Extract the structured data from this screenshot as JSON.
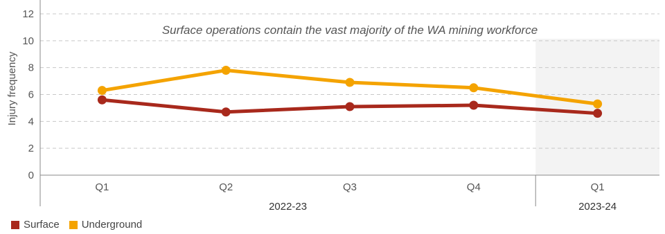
{
  "chart_data": {
    "type": "line",
    "title": "",
    "annotation": "Surface operations contain the vast majority of the WA mining workforce",
    "ylabel": "Injury frequency",
    "xlabel": "",
    "ylim": [
      0,
      12
    ],
    "yticks": [
      "0",
      "2",
      "4",
      "6",
      "8",
      "10",
      "12"
    ],
    "categories": [
      "Q1",
      "Q2",
      "Q3",
      "Q4",
      "Q1"
    ],
    "groups": [
      {
        "label": "2022-23",
        "span": [
          0,
          3
        ]
      },
      {
        "label": "2023-24",
        "span": [
          4,
          4
        ]
      }
    ],
    "highlight_category_index": 4,
    "grid": true,
    "legend_position": "bottom-left",
    "series": [
      {
        "name": "Surface",
        "color": "#A8291C",
        "values": [
          5.6,
          4.7,
          5.1,
          5.2,
          4.6
        ]
      },
      {
        "name": "Underground",
        "color": "#F4A300",
        "values": [
          6.3,
          7.8,
          6.9,
          6.5,
          5.3
        ]
      }
    ]
  }
}
